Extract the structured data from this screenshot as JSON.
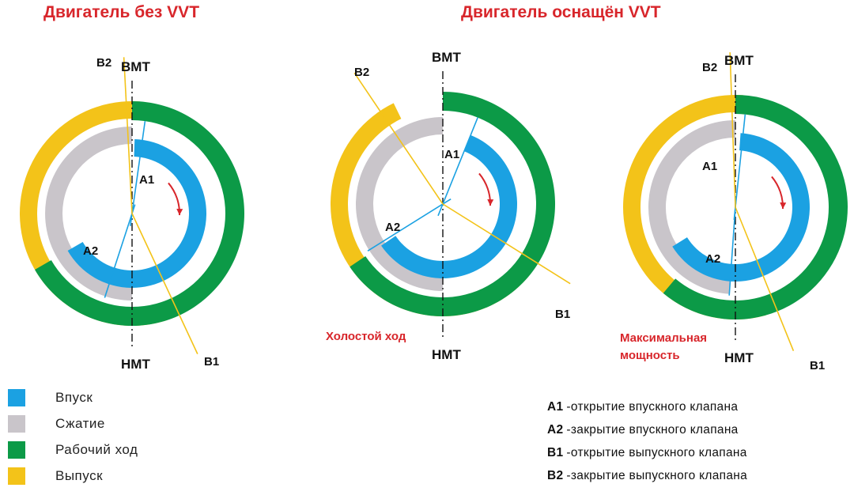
{
  "titles": {
    "left": "Двигатель без VVT",
    "right": "Двигатель оснащён VVT"
  },
  "labels": {
    "tdc": "ВМТ",
    "bdc": "НМТ",
    "a1": "A1",
    "a2": "A2",
    "b1": "B1",
    "b2": "B2"
  },
  "captions": {
    "idle": "Холостой ход",
    "max_power_line1": "Максимальная",
    "max_power_line2": "мощность"
  },
  "colors": {
    "intake": "#1ba1e2",
    "compression": "#c9c5ca",
    "power": "#0c9a47",
    "exhaust": "#f3c319",
    "accent": "#d8262b"
  },
  "legend": [
    {
      "label": "Впуск",
      "color": "#1ba1e2"
    },
    {
      "label": "Сжатие",
      "color": "#c9c5ca"
    },
    {
      "label": "Рабочий ход",
      "color": "#0c9a47"
    },
    {
      "label": "Выпуск",
      "color": "#f3c319"
    }
  ],
  "notes": [
    {
      "code": "A1",
      "text": "-открытие впускного клапана"
    },
    {
      "code": "A2",
      "text": "-закрытие впускного клапана"
    },
    {
      "code": "B1",
      "text": "-открытие выпускного клапана"
    },
    {
      "code": "B2",
      "text": "-закрытие выпускного клапана"
    }
  ]
}
